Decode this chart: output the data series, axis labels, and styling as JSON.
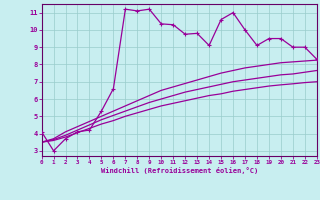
{
  "title": "",
  "xlabel": "Windchill (Refroidissement éolien,°C)",
  "bg_color": "#c8eef0",
  "line_color": "#990099",
  "grid_color": "#99cccc",
  "axis_color": "#660066",
  "x_ticks": [
    0,
    1,
    2,
    3,
    4,
    5,
    6,
    7,
    8,
    9,
    10,
    11,
    12,
    13,
    14,
    15,
    16,
    17,
    18,
    19,
    20,
    21,
    22,
    23
  ],
  "y_ticks": [
    3,
    4,
    5,
    6,
    7,
    8,
    9,
    10,
    11
  ],
  "xlim": [
    0,
    23
  ],
  "ylim": [
    2.7,
    11.5
  ],
  "series1_x": [
    0,
    1,
    2,
    3,
    4,
    5,
    6,
    7,
    8,
    9,
    10,
    11,
    12,
    13,
    14,
    15,
    16,
    17,
    18,
    19,
    20,
    21,
    22,
    23
  ],
  "series1_y": [
    4.1,
    3.0,
    3.7,
    4.1,
    4.2,
    5.3,
    6.6,
    11.2,
    11.1,
    11.2,
    10.35,
    10.3,
    9.75,
    9.8,
    9.1,
    10.6,
    11.0,
    10.0,
    9.1,
    9.5,
    9.5,
    9.0,
    9.0,
    8.3
  ],
  "curve2_x": [
    0,
    1,
    2,
    3,
    4,
    5,
    6,
    7,
    8,
    9,
    10,
    11,
    12,
    13,
    14,
    15,
    16,
    17,
    18,
    19,
    20,
    21,
    22,
    23
  ],
  "curve2_y": [
    3.5,
    3.7,
    4.1,
    4.4,
    4.7,
    5.0,
    5.3,
    5.6,
    5.9,
    6.2,
    6.5,
    6.7,
    6.9,
    7.1,
    7.3,
    7.5,
    7.65,
    7.8,
    7.9,
    8.0,
    8.1,
    8.15,
    8.2,
    8.25
  ],
  "curve3_x": [
    0,
    1,
    2,
    3,
    4,
    5,
    6,
    7,
    8,
    9,
    10,
    11,
    12,
    13,
    14,
    15,
    16,
    17,
    18,
    19,
    20,
    21,
    22,
    23
  ],
  "curve3_y": [
    3.5,
    3.65,
    3.9,
    4.2,
    4.5,
    4.8,
    5.05,
    5.3,
    5.55,
    5.8,
    6.0,
    6.2,
    6.4,
    6.55,
    6.7,
    6.85,
    7.0,
    7.1,
    7.2,
    7.3,
    7.4,
    7.45,
    7.55,
    7.65
  ],
  "curve4_x": [
    0,
    1,
    2,
    3,
    4,
    5,
    6,
    7,
    8,
    9,
    10,
    11,
    12,
    13,
    14,
    15,
    16,
    17,
    18,
    19,
    20,
    21,
    22,
    23
  ],
  "curve4_y": [
    3.5,
    3.6,
    3.8,
    4.05,
    4.3,
    4.55,
    4.75,
    5.0,
    5.2,
    5.4,
    5.6,
    5.75,
    5.9,
    6.05,
    6.2,
    6.3,
    6.45,
    6.55,
    6.65,
    6.75,
    6.82,
    6.88,
    6.95,
    7.0
  ]
}
